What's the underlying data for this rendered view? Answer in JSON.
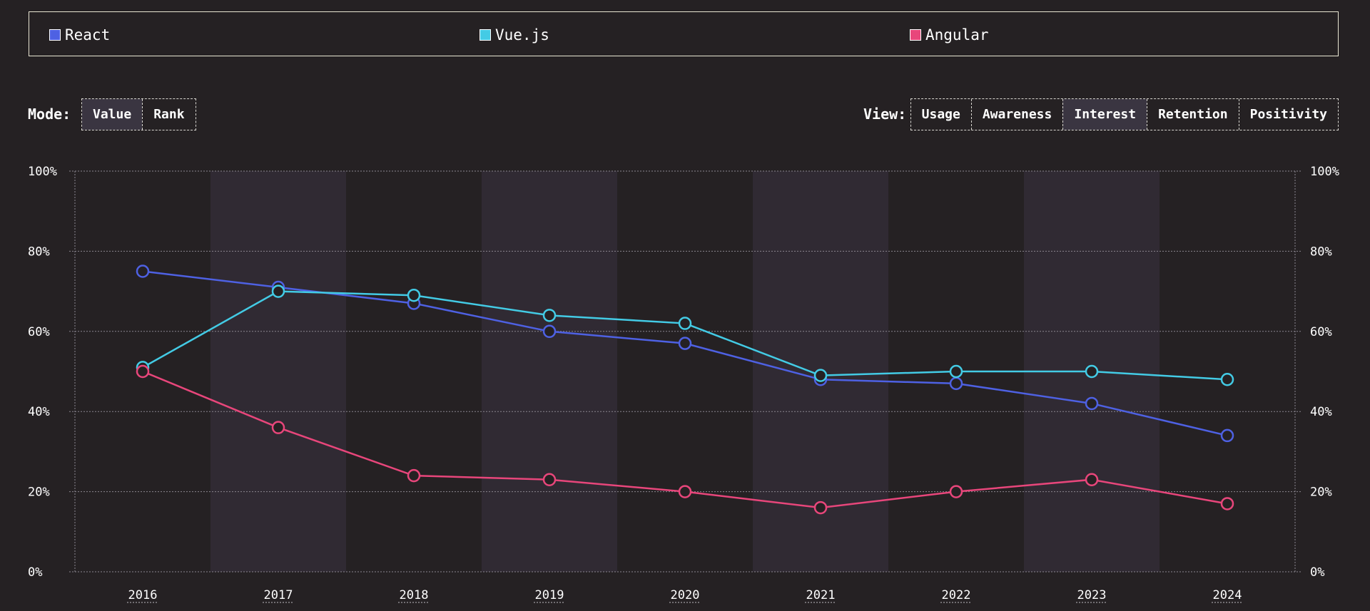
{
  "legend": {
    "items": [
      {
        "label": "React",
        "color": "#4e61e3"
      },
      {
        "label": "Vue.js",
        "color": "#43cbe5"
      },
      {
        "label": "Angular",
        "color": "#e8467b"
      }
    ]
  },
  "mode": {
    "label": "Mode:",
    "options": [
      {
        "label": "Value",
        "active": true
      },
      {
        "label": "Rank",
        "active": false
      }
    ]
  },
  "view": {
    "label": "View:",
    "options": [
      {
        "label": "Usage",
        "active": false
      },
      {
        "label": "Awareness",
        "active": false
      },
      {
        "label": "Interest",
        "active": true
      },
      {
        "label": "Retention",
        "active": false
      },
      {
        "label": "Positivity",
        "active": false
      }
    ]
  },
  "chart_data": {
    "type": "line",
    "x": [
      "2016",
      "2017",
      "2018",
      "2019",
      "2020",
      "2021",
      "2022",
      "2023",
      "2024"
    ],
    "ylim": [
      0,
      100
    ],
    "yticks": [
      "0%",
      "20%",
      "40%",
      "60%",
      "80%",
      "100%"
    ],
    "grid": true,
    "series": [
      {
        "name": "React",
        "color": "#4e61e3",
        "values": [
          75,
          71,
          67,
          60,
          57,
          48,
          47,
          42,
          34
        ]
      },
      {
        "name": "Vue.js",
        "color": "#43cbe5",
        "values": [
          51,
          70,
          69,
          64,
          62,
          49,
          50,
          50,
          48
        ]
      },
      {
        "name": "Angular",
        "color": "#e8467b",
        "values": [
          50,
          36,
          24,
          23,
          20,
          16,
          20,
          23,
          17
        ]
      }
    ]
  }
}
